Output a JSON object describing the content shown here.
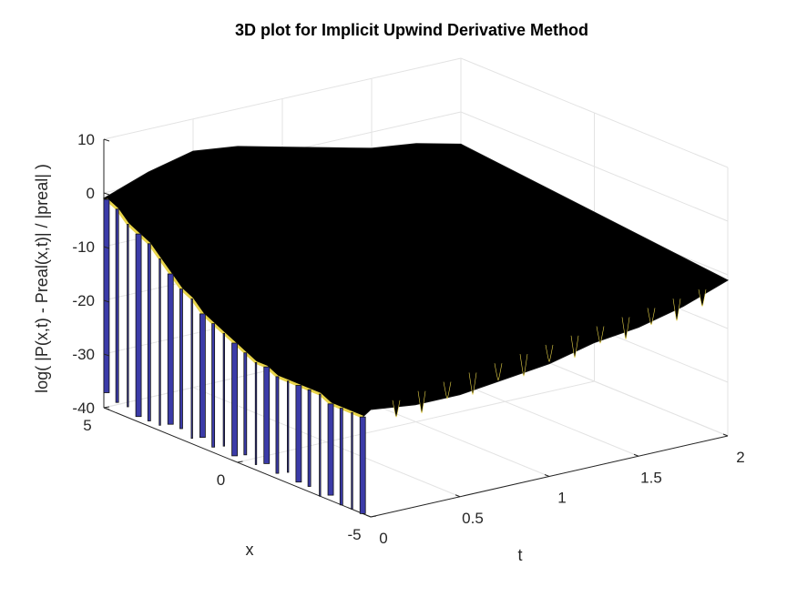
{
  "chart_data": {
    "type": "surface3d",
    "title": "3D plot for Implicit Upwind Derivative Method",
    "xlabel": "t",
    "ylabel": "x",
    "zlabel": "log( |P(x,t) - Preal(x,t)| / |preal| )",
    "t_range": [
      0,
      2
    ],
    "x_range": [
      -5,
      5
    ],
    "z_range": [
      -40,
      10
    ],
    "t_ticks": [
      "0",
      "0.5",
      "1",
      "1.5",
      "2"
    ],
    "x_ticks": [
      "5",
      "0",
      "-5"
    ],
    "z_ticks": [
      "10",
      "0",
      "-10",
      "-20",
      "-30",
      "-40"
    ],
    "grid": true,
    "surface_face_color": "#000000",
    "surface_edge_color": "#e8d44a",
    "spike_face_color": "#3b3ba8",
    "near_edge_profile": {
      "x": [
        4.9,
        4.5,
        4.1,
        3.7,
        3.3,
        2.9,
        2.5,
        2.1,
        1.7,
        1.3,
        0.9,
        0.5,
        0.1,
        -0.3,
        -0.7,
        -1.1,
        -1.5,
        -1.9,
        -2.3,
        -2.7,
        -3.1,
        -3.5,
        -3.9,
        -4.3,
        -4.7
      ],
      "z_top": [
        -1,
        -2,
        -4,
        -5,
        -6,
        -8,
        -10,
        -12,
        -13,
        -15,
        -16,
        -17,
        -18,
        -19,
        -20,
        -20,
        -21,
        -21,
        -21,
        -21,
        -21,
        -22,
        -22,
        -22,
        -22
      ],
      "z_bottom": [
        -37,
        -38,
        -38,
        -39,
        -39,
        -39,
        -38,
        -38,
        -39,
        -38,
        -39,
        -38,
        -39,
        -38,
        -39,
        -38,
        -39,
        -38,
        -39,
        -39,
        -40,
        -39,
        -40,
        -40,
        -40
      ]
    },
    "far_edge_profile": {
      "t": [
        0,
        0.25,
        0.5,
        0.75,
        1.0,
        1.25,
        1.5,
        1.75,
        2.0
      ],
      "z": [
        -20,
        -21,
        -21,
        -20,
        -19,
        -17,
        -16,
        -14,
        -11
      ]
    }
  }
}
